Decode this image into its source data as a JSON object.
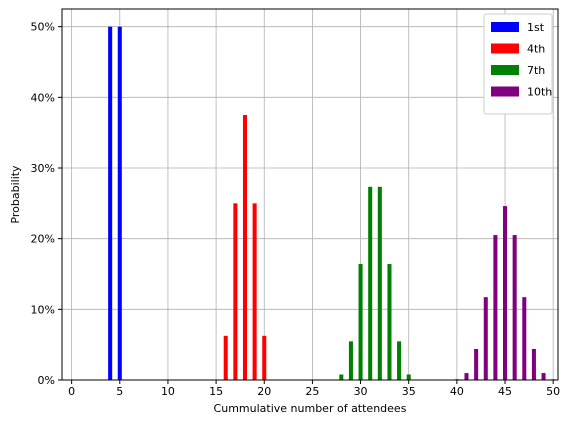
{
  "chart_data": {
    "type": "bar",
    "xlabel": "Cummulative number of attendees",
    "ylabel": "Probability",
    "xlim": [
      -1,
      50.5
    ],
    "ylim": [
      0,
      0.525
    ],
    "x_ticks": [
      0,
      5,
      10,
      15,
      20,
      25,
      30,
      35,
      40,
      45,
      50
    ],
    "y_ticks": [
      0,
      0.1,
      0.2,
      0.3,
      0.4,
      0.5
    ],
    "y_tick_labels": [
      "0%",
      "10%",
      "20%",
      "30%",
      "40%",
      "50%"
    ],
    "grid": true,
    "legend_position": "top-right",
    "series": [
      {
        "name": "1st",
        "color": "#0000ff",
        "x": [
          4,
          5
        ],
        "values": [
          0.5,
          0.5
        ]
      },
      {
        "name": "4th",
        "color": "#ff0000",
        "x": [
          16,
          17,
          18,
          19,
          20
        ],
        "values": [
          0.0625,
          0.25,
          0.375,
          0.25,
          0.0625
        ]
      },
      {
        "name": "7th",
        "color": "#008000",
        "x": [
          28,
          29,
          30,
          31,
          32,
          33,
          34,
          35
        ],
        "values": [
          0.0078,
          0.0547,
          0.1641,
          0.2734,
          0.2734,
          0.1641,
          0.0547,
          0.0078
        ]
      },
      {
        "name": "10th",
        "color": "#800080",
        "x": [
          40,
          41,
          42,
          43,
          44,
          45,
          46,
          47,
          48,
          49,
          50
        ],
        "values": [
          0.001,
          0.0098,
          0.0439,
          0.1172,
          0.2051,
          0.2461,
          0.2051,
          0.1172,
          0.0439,
          0.0098,
          0.001
        ]
      }
    ]
  }
}
